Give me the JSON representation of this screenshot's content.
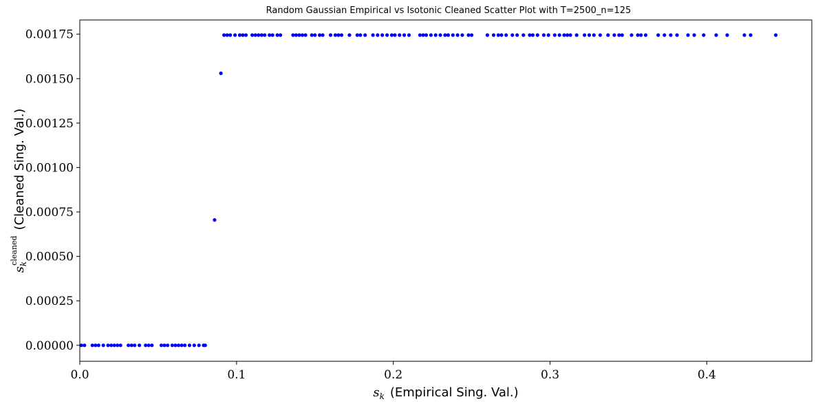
{
  "chart_data": {
    "type": "scatter",
    "title": "Random Gaussian Empirical vs Isotonic Cleaned Scatter Plot with T=2500_n=125",
    "xlabel": {
      "symbol": "s",
      "subscript": "k",
      "text": "(Empirical Sing. Val.)"
    },
    "ylabel": {
      "symbol": "s",
      "subscript": "k",
      "superscript": "cleaned",
      "text": "(Cleaned Sing. Val.)"
    },
    "xlim": [
      0.0,
      0.467
    ],
    "ylim": [
      -9e-05,
      0.00183
    ],
    "xticks": [
      0.0,
      0.1,
      0.2,
      0.3,
      0.4
    ],
    "xtick_labels": [
      "0.0",
      "0.1",
      "0.2",
      "0.3",
      "0.4"
    ],
    "yticks": [
      0.0,
      0.00025,
      0.0005,
      0.00075,
      0.001,
      0.00125,
      0.0015,
      0.00175
    ],
    "ytick_labels": [
      "0.00000",
      "0.00025",
      "0.00050",
      "0.00075",
      "0.00100",
      "0.00125",
      "0.00150",
      "0.00175"
    ],
    "grid": false,
    "marker_color": "#0000ff",
    "series": [
      {
        "x": [
          0.001,
          0.003,
          0.008,
          0.01,
          0.012,
          0.015,
          0.018,
          0.02,
          0.022,
          0.024,
          0.026,
          0.031,
          0.033,
          0.035,
          0.038,
          0.042,
          0.044,
          0.046,
          0.052,
          0.054,
          0.056,
          0.059,
          0.061,
          0.063,
          0.065,
          0.067,
          0.07,
          0.073,
          0.076,
          0.079,
          0.08,
          0.086,
          0.09,
          0.092,
          0.094,
          0.096,
          0.099,
          0.102,
          0.104,
          0.106,
          0.11,
          0.112,
          0.114,
          0.116,
          0.118,
          0.121,
          0.123,
          0.126,
          0.128,
          0.136,
          0.138,
          0.14,
          0.142,
          0.144,
          0.148,
          0.15,
          0.153,
          0.155,
          0.16,
          0.163,
          0.165,
          0.167,
          0.172,
          0.177,
          0.179,
          0.182,
          0.187,
          0.19,
          0.193,
          0.196,
          0.199,
          0.201,
          0.204,
          0.207,
          0.21,
          0.217,
          0.219,
          0.221,
          0.224,
          0.227,
          0.23,
          0.233,
          0.235,
          0.238,
          0.241,
          0.244,
          0.248,
          0.25,
          0.26,
          0.264,
          0.267,
          0.269,
          0.272,
          0.276,
          0.279,
          0.283,
          0.287,
          0.289,
          0.292,
          0.296,
          0.299,
          0.303,
          0.306,
          0.309,
          0.311,
          0.313,
          0.317,
          0.322,
          0.325,
          0.328,
          0.332,
          0.337,
          0.341,
          0.344,
          0.346,
          0.352,
          0.356,
          0.358,
          0.361,
          0.369,
          0.373,
          0.377,
          0.381,
          0.388,
          0.392,
          0.398,
          0.406,
          0.413,
          0.424,
          0.428,
          0.444
        ],
        "y": [
          0.0,
          0.0,
          0.0,
          0.0,
          0.0,
          0.0,
          0.0,
          0.0,
          0.0,
          0.0,
          0.0,
          0.0,
          0.0,
          0.0,
          0.0,
          0.0,
          0.0,
          0.0,
          0.0,
          0.0,
          0.0,
          0.0,
          0.0,
          0.0,
          0.0,
          0.0,
          0.0,
          0.0,
          0.0,
          0.0,
          0.0,
          0.000705,
          0.00153,
          0.001745,
          0.001745,
          0.001745,
          0.001745,
          0.001745,
          0.001745,
          0.001745,
          0.001745,
          0.001745,
          0.001745,
          0.001745,
          0.001745,
          0.001745,
          0.001745,
          0.001745,
          0.001745,
          0.001745,
          0.001745,
          0.001745,
          0.001745,
          0.001745,
          0.001745,
          0.001745,
          0.001745,
          0.001745,
          0.001745,
          0.001745,
          0.001745,
          0.001745,
          0.001745,
          0.001745,
          0.001745,
          0.001745,
          0.001745,
          0.001745,
          0.001745,
          0.001745,
          0.001745,
          0.001745,
          0.001745,
          0.001745,
          0.001745,
          0.001745,
          0.001745,
          0.001745,
          0.001745,
          0.001745,
          0.001745,
          0.001745,
          0.001745,
          0.001745,
          0.001745,
          0.001745,
          0.001745,
          0.001745,
          0.001745,
          0.001745,
          0.001745,
          0.001745,
          0.001745,
          0.001745,
          0.001745,
          0.001745,
          0.001745,
          0.001745,
          0.001745,
          0.001745,
          0.001745,
          0.001745,
          0.001745,
          0.001745,
          0.001745,
          0.001745,
          0.001745,
          0.001745,
          0.001745,
          0.001745,
          0.001745,
          0.001745,
          0.001745,
          0.001745,
          0.001745,
          0.001745,
          0.001745,
          0.001745,
          0.001745,
          0.001745,
          0.001745,
          0.001745,
          0.001745,
          0.001745,
          0.001745,
          0.001745,
          0.001745,
          0.001745,
          0.001745,
          0.001745,
          0.001745
        ]
      }
    ]
  }
}
